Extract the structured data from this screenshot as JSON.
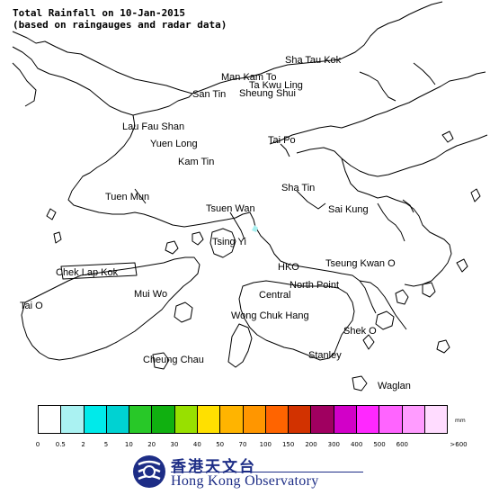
{
  "title_line1": "Total Rainfall on 10-Jan-2015",
  "title_line2": "(based on raingauges and radar data)",
  "places": [
    {
      "id": "sha-tau-kok",
      "label": "Sha Tau Kok"
    },
    {
      "id": "man-kam-to",
      "label": "Man Kam To"
    },
    {
      "id": "ta-kwu-ling",
      "label": "Ta Kwu Ling"
    },
    {
      "id": "san-tin",
      "label": "San Tin"
    },
    {
      "id": "sheung-shui",
      "label": "Sheung Shui"
    },
    {
      "id": "lau-fau-shan",
      "label": "Lau Fau Shan"
    },
    {
      "id": "yuen-long",
      "label": "Yuen Long"
    },
    {
      "id": "tai-po",
      "label": "Tai Po"
    },
    {
      "id": "kam-tin",
      "label": "Kam Tin"
    },
    {
      "id": "sha-tin",
      "label": "Sha Tin"
    },
    {
      "id": "tuen-mun",
      "label": "Tuen Mun"
    },
    {
      "id": "tsuen-wan",
      "label": "Tsuen Wan"
    },
    {
      "id": "sai-kung",
      "label": "Sai Kung"
    },
    {
      "id": "tsing-yi",
      "label": "Tsing Yi"
    },
    {
      "id": "chek-lap-kok",
      "label": "Chek Lap Kok"
    },
    {
      "id": "hko",
      "label": "HKO"
    },
    {
      "id": "tseung-kwan-o",
      "label": "Tseung Kwan O"
    },
    {
      "id": "tai-o",
      "label": "Tai O"
    },
    {
      "id": "mui-wo",
      "label": "Mui Wo"
    },
    {
      "id": "north-point",
      "label": "North Point"
    },
    {
      "id": "central",
      "label": "Central"
    },
    {
      "id": "wong-chuk-hang",
      "label": "Wong Chuk Hang"
    },
    {
      "id": "shek-o",
      "label": "Shek O"
    },
    {
      "id": "cheung-chau",
      "label": "Cheung Chau"
    },
    {
      "id": "stanley",
      "label": "Stanley"
    },
    {
      "id": "waglan",
      "label": "Waglan"
    }
  ],
  "rain_cell": {
    "color": "#a8f0f0",
    "legend_band": "0.5 - 2 mm"
  },
  "legend": {
    "unit": "mm",
    "colors": [
      "#ffffff",
      "#aaf2f2",
      "#00eaea",
      "#00d2d2",
      "#28c828",
      "#10b010",
      "#98e000",
      "#ffe000",
      "#ffb400",
      "#ff9600",
      "#ff6400",
      "#d23200",
      "#a00060",
      "#d200c8",
      "#ff28ff",
      "#ff64ff",
      "#ff9cff",
      "#ffdcff"
    ],
    "ticks": [
      "0",
      "0.5",
      "2",
      "5",
      "10",
      "20",
      "30",
      "40",
      "50",
      "70",
      "100",
      "150",
      "200",
      "300",
      "400",
      "500",
      "600",
      ">600"
    ]
  },
  "logo": {
    "name": "hko-logo",
    "chinese": "香港天文台",
    "english": "Hong Kong Observatory",
    "color": "#1d2d86"
  }
}
